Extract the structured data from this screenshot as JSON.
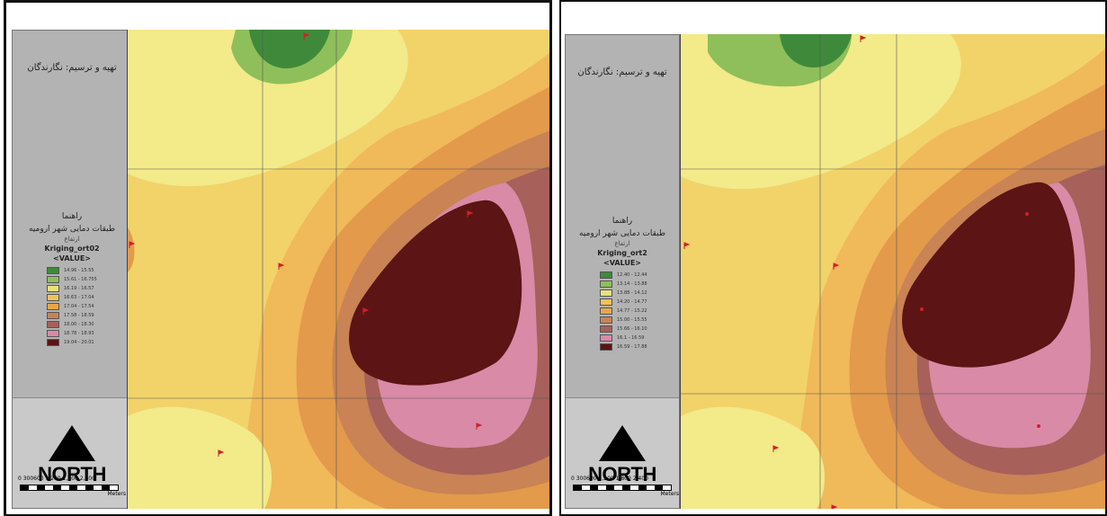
{
  "maps": [
    {
      "id": "left",
      "legend": {
        "title": "تهیه و ترسیم: نگارندگان",
        "heading": "راهنما",
        "subheading": "طبقات دمایی شهر ارومیه",
        "small_label": "ارتفاع",
        "layer_name": "Kriging_ort02",
        "field": "<VALUE>",
        "classes": [
          {
            "range": "14.96 - 15.55",
            "color": "#3f8a3a"
          },
          {
            "range": "15.61 - 16.755",
            "color": "#8fbf5a"
          },
          {
            "range": "16.19 - 16.57",
            "color": "#e8e27a"
          },
          {
            "range": "16.63 - 17.04",
            "color": "#f1c25a"
          },
          {
            "range": "17.04 - 17.54",
            "color": "#e9a64b"
          },
          {
            "range": "17.58 - 18.59",
            "color": "#c98354"
          },
          {
            "range": "18.00 - 18.30",
            "color": "#a7605a"
          },
          {
            "range": "18.78 - 18.93",
            "color": "#d98aa6"
          },
          {
            "range": "19.04 - 20.01",
            "color": "#5c1414"
          }
        ]
      },
      "north_label": "NORTH",
      "scale": {
        "labels": "0 300600 1,200 1,800 2,400",
        "unit": "Meters"
      }
    },
    {
      "id": "right",
      "legend": {
        "title": "تهیه و ترسیم: نگارندگان",
        "heading": "راهنما",
        "subheading": "طبقات دمایی شهر ارومیه",
        "small_label": "ارتفاع",
        "layer_name": "Kriging_ort2",
        "field": "<VALUE>",
        "classes": [
          {
            "range": "12.40 - 12.44",
            "color": "#3f8a3a"
          },
          {
            "range": "13.14 - 13.88",
            "color": "#8fbf5a"
          },
          {
            "range": "13.88 - 14.12",
            "color": "#e8e27a"
          },
          {
            "range": "14.20 - 14.77",
            "color": "#f1c25a"
          },
          {
            "range": "14.77 - 15.22",
            "color": "#e9a64b"
          },
          {
            "range": "15.00 - 15.55",
            "color": "#c98354"
          },
          {
            "range": "15.66 - 16.10",
            "color": "#a7605a"
          },
          {
            "range": "16.1 - 16.59",
            "color": "#d98aa6"
          },
          {
            "range": "16.59 - 17.88",
            "color": "#5c1414"
          }
        ]
      },
      "north_label": "NORTH",
      "scale": {
        "labels": "0 300600 1,200 1,800 2,400",
        "unit": "Meters"
      }
    }
  ],
  "colors": {
    "green_dark": "#3f8a3a",
    "green_light": "#8fbf5a",
    "yellow_light": "#f3ea8a",
    "yellow": "#f1d36a",
    "orange_light": "#f0b95a",
    "orange": "#e39a4b",
    "brown_light": "#c98354",
    "brown": "#a7605a",
    "pink": "#d98aa6",
    "maroon": "#5c1414",
    "marker": "#d2202a"
  }
}
